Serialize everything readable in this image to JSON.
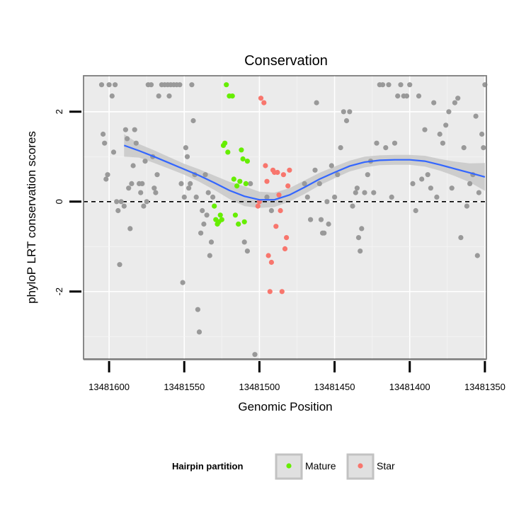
{
  "chart_data": {
    "type": "scatter",
    "title": "Conservation",
    "xlabel": "Genomic Position",
    "ylabel": "phyloP LRT conservation scores",
    "x_reversed": true,
    "xlim": [
      13481617,
      13481349
    ],
    "ylim": [
      -3.5,
      2.8
    ],
    "xticks": [
      13481600,
      13481550,
      13481500,
      13481450,
      13481400,
      13481350
    ],
    "xtick_labels": [
      "13481600",
      "13481550",
      "13481500",
      "13481450",
      "13481400",
      "13481350"
    ],
    "yticks": [
      -2,
      0,
      2
    ],
    "ytick_labels": [
      "-2",
      "0",
      "2"
    ],
    "grid": true,
    "reference_line": {
      "y": 0,
      "style": "dashed",
      "color": "#000000"
    },
    "legend": {
      "title": "Hairpin partition",
      "placement": "bottom",
      "entries": [
        {
          "label": "Mature",
          "color": "#66ee00"
        },
        {
          "label": "Star",
          "color": "#f8766d"
        }
      ]
    },
    "colors": {
      "background": "#ebebeb",
      "other": "#999999",
      "smooth": "#3366ff",
      "band": "#c8c8c8"
    },
    "series": [
      {
        "group": "other",
        "points": [
          [
            13481605,
            2.6
          ],
          [
            13481600,
            2.6
          ],
          [
            13481598,
            2.35
          ],
          [
            13481596,
            2.6
          ],
          [
            13481604,
            1.5
          ],
          [
            13481603,
            1.3
          ],
          [
            13481601,
            0.6
          ],
          [
            13481602,
            0.5
          ],
          [
            13481597,
            1.1
          ],
          [
            13481595,
            0.0
          ],
          [
            13481594,
            -0.2
          ],
          [
            13481593,
            -1.4
          ],
          [
            13481592,
            0.0
          ],
          [
            13481590,
            -0.1
          ],
          [
            13481589,
            1.6
          ],
          [
            13481588,
            1.4
          ],
          [
            13481587,
            0.3
          ],
          [
            13481586,
            -0.6
          ],
          [
            13481585,
            0.4
          ],
          [
            13481584,
            0.8
          ],
          [
            13481583,
            1.6
          ],
          [
            13481582,
            1.3
          ],
          [
            13481580,
            0.4
          ],
          [
            13481579,
            0.2
          ],
          [
            13481578,
            0.4
          ],
          [
            13481577,
            -0.1
          ],
          [
            13481576,
            0.9
          ],
          [
            13481575,
            0.0
          ],
          [
            13481574,
            2.6
          ],
          [
            13481572,
            2.6
          ],
          [
            13481571,
            1.0
          ],
          [
            13481570,
            0.3
          ],
          [
            13481569,
            0.2
          ],
          [
            13481568,
            0.6
          ],
          [
            13481567,
            2.35
          ],
          [
            13481565,
            2.6
          ],
          [
            13481563,
            2.6
          ],
          [
            13481561,
            2.6
          ],
          [
            13481560,
            2.35
          ],
          [
            13481559,
            2.6
          ],
          [
            13481557,
            2.6
          ],
          [
            13481555,
            2.6
          ],
          [
            13481553,
            2.6
          ],
          [
            13481552,
            0.4
          ],
          [
            13481551,
            -1.8
          ],
          [
            13481550,
            0.1
          ],
          [
            13481549,
            1.2
          ],
          [
            13481548,
            1.0
          ],
          [
            13481547,
            0.3
          ],
          [
            13481546,
            0.4
          ],
          [
            13481545,
            2.6
          ],
          [
            13481544,
            1.8
          ],
          [
            13481543,
            0.6
          ],
          [
            13481542,
            0.1
          ],
          [
            13481541,
            -2.4
          ],
          [
            13481540,
            -2.9
          ],
          [
            13481539,
            -0.7
          ],
          [
            13481538,
            -0.2
          ],
          [
            13481537,
            -0.5
          ],
          [
            13481536,
            0.6
          ],
          [
            13481535,
            -0.3
          ],
          [
            13481534,
            0.2
          ],
          [
            13481533,
            -1.2
          ],
          [
            13481532,
            -0.9
          ],
          [
            13481531,
            0.1
          ],
          [
            13481514,
            -0.5
          ],
          [
            13481510,
            -0.9
          ],
          [
            13481508,
            -1.1
          ],
          [
            13481506,
            0.4
          ],
          [
            13481503,
            -3.4
          ],
          [
            13481495,
            0.1
          ],
          [
            13481492,
            -0.2
          ],
          [
            13481470,
            0.4
          ],
          [
            13481468,
            0.1
          ],
          [
            13481466,
            -0.4
          ],
          [
            13481463,
            0.7
          ],
          [
            13481462,
            2.2
          ],
          [
            13481460,
            0.4
          ],
          [
            13481459,
            -0.4
          ],
          [
            13481458,
            -0.7
          ],
          [
            13481457,
            -0.7
          ],
          [
            13481455,
            0.0
          ],
          [
            13481454,
            -0.5
          ],
          [
            13481452,
            0.8
          ],
          [
            13481450,
            0.1
          ],
          [
            13481448,
            0.6
          ],
          [
            13481446,
            1.2
          ],
          [
            13481444,
            2.0
          ],
          [
            13481442,
            1.8
          ],
          [
            13481440,
            2.0
          ],
          [
            13481438,
            -0.1
          ],
          [
            13481436,
            0.2
          ],
          [
            13481435,
            0.3
          ],
          [
            13481434,
            -0.8
          ],
          [
            13481433,
            -1.1
          ],
          [
            13481432,
            -0.6
          ],
          [
            13481430,
            0.2
          ],
          [
            13481428,
            0.6
          ],
          [
            13481426,
            0.9
          ],
          [
            13481424,
            0.2
          ],
          [
            13481422,
            1.3
          ],
          [
            13481420,
            2.6
          ],
          [
            13481418,
            2.6
          ],
          [
            13481416,
            1.2
          ],
          [
            13481414,
            2.6
          ],
          [
            13481412,
            0.1
          ],
          [
            13481410,
            1.3
          ],
          [
            13481408,
            2.35
          ],
          [
            13481406,
            2.6
          ],
          [
            13481404,
            2.35
          ],
          [
            13481402,
            2.35
          ],
          [
            13481400,
            2.6
          ],
          [
            13481398,
            0.4
          ],
          [
            13481396,
            -0.2
          ],
          [
            13481394,
            2.35
          ],
          [
            13481392,
            0.5
          ],
          [
            13481390,
            1.6
          ],
          [
            13481388,
            0.6
          ],
          [
            13481386,
            0.3
          ],
          [
            13481384,
            2.2
          ],
          [
            13481382,
            0.1
          ],
          [
            13481380,
            1.5
          ],
          [
            13481378,
            1.3
          ],
          [
            13481376,
            1.7
          ],
          [
            13481374,
            2.0
          ],
          [
            13481372,
            0.3
          ],
          [
            13481370,
            2.2
          ],
          [
            13481368,
            2.3
          ],
          [
            13481366,
            -0.8
          ],
          [
            13481364,
            1.2
          ],
          [
            13481362,
            -0.1
          ],
          [
            13481360,
            0.4
          ],
          [
            13481358,
            0.6
          ],
          [
            13481356,
            1.9
          ],
          [
            13481355,
            -1.2
          ],
          [
            13481354,
            0.2
          ],
          [
            13481352,
            1.5
          ],
          [
            13481351,
            1.2
          ],
          [
            13481350,
            2.6
          ]
        ]
      },
      {
        "group": "Mature",
        "points": [
          [
            13481530,
            -0.1
          ],
          [
            13481529,
            -0.4
          ],
          [
            13481528,
            -0.5
          ],
          [
            13481527,
            -0.45
          ],
          [
            13481526,
            -0.3
          ],
          [
            13481525,
            -0.4
          ],
          [
            13481524,
            1.25
          ],
          [
            13481523,
            1.3
          ],
          [
            13481522,
            2.6
          ],
          [
            13481521,
            1.1
          ],
          [
            13481520,
            2.35
          ],
          [
            13481518,
            2.35
          ],
          [
            13481517,
            0.5
          ],
          [
            13481516,
            -0.3
          ],
          [
            13481515,
            0.35
          ],
          [
            13481514,
            -0.5
          ],
          [
            13481513,
            0.45
          ],
          [
            13481512,
            1.15
          ],
          [
            13481511,
            0.95
          ],
          [
            13481510,
            -0.45
          ],
          [
            13481509,
            0.4
          ],
          [
            13481508,
            0.9
          ]
        ]
      },
      {
        "group": "Star",
        "points": [
          [
            13481501,
            -0.1
          ],
          [
            13481500,
            0.0
          ],
          [
            13481499,
            2.3
          ],
          [
            13481497,
            2.2
          ],
          [
            13481496,
            0.8
          ],
          [
            13481495,
            0.45
          ],
          [
            13481494,
            -1.2
          ],
          [
            13481493,
            -2.0
          ],
          [
            13481492,
            -1.35
          ],
          [
            13481491,
            0.7
          ],
          [
            13481490,
            0.65
          ],
          [
            13481489,
            -0.55
          ],
          [
            13481488,
            0.65
          ],
          [
            13481487,
            0.15
          ],
          [
            13481486,
            -0.2
          ],
          [
            13481485,
            -2.0
          ],
          [
            13481484,
            0.6
          ],
          [
            13481483,
            -1.05
          ],
          [
            13481482,
            -0.8
          ],
          [
            13481481,
            0.35
          ],
          [
            13481480,
            0.7
          ]
        ]
      }
    ],
    "smooth": {
      "method": "loess",
      "x": [
        13481590,
        13481580,
        13481570,
        13481560,
        13481550,
        13481540,
        13481530,
        13481520,
        13481510,
        13481500,
        13481490,
        13481480,
        13481470,
        13481460,
        13481450,
        13481440,
        13481430,
        13481420,
        13481410,
        13481400,
        13481390,
        13481380,
        13481370,
        13481360,
        13481350
      ],
      "y": [
        1.25,
        1.13,
        1.0,
        0.86,
        0.72,
        0.58,
        0.42,
        0.25,
        0.12,
        0.04,
        0.04,
        0.15,
        0.32,
        0.5,
        0.65,
        0.79,
        0.88,
        0.92,
        0.93,
        0.93,
        0.9,
        0.82,
        0.73,
        0.64,
        0.55
      ],
      "lower": [
        1.0,
        0.98,
        0.86,
        0.73,
        0.6,
        0.44,
        0.26,
        0.06,
        -0.1,
        -0.14,
        -0.12,
        0.0,
        0.17,
        0.36,
        0.52,
        0.67,
        0.76,
        0.81,
        0.82,
        0.82,
        0.78,
        0.69,
        0.57,
        0.43,
        0.24
      ],
      "upper": [
        1.5,
        1.28,
        1.14,
        0.99,
        0.84,
        0.72,
        0.58,
        0.44,
        0.34,
        0.22,
        0.2,
        0.3,
        0.47,
        0.64,
        0.78,
        0.91,
        1.0,
        1.03,
        1.04,
        1.04,
        1.02,
        0.95,
        0.89,
        0.85,
        0.86
      ]
    }
  }
}
